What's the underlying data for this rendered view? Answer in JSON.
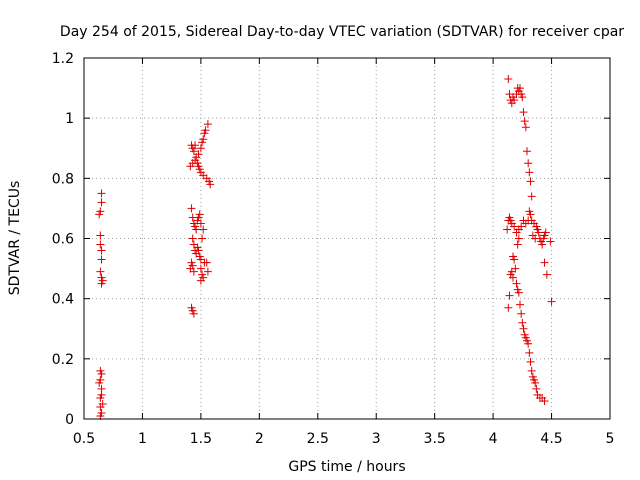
{
  "chart_data": {
    "type": "scatter",
    "title": "Day 254 of 2015, Sidereal Day-to-day VTEC variation (SDTVAR) for receiver cpar",
    "xlabel": "GPS time / hours",
    "ylabel": "SDTVAR / TECUs",
    "xlim": [
      0.5,
      5
    ],
    "ylim": [
      0,
      1.2
    ],
    "xticks": [
      "0.5",
      "1",
      "1.5",
      "2",
      "2.5",
      "3",
      "3.5",
      "4",
      "4.5",
      "5"
    ],
    "yticks": [
      "0",
      "0.2",
      "0.4",
      "0.6",
      "0.8",
      "1",
      "1.2"
    ],
    "grid": true,
    "marker": "+",
    "color": "#e00000",
    "points": [
      [
        0.63,
        0.68
      ],
      [
        0.64,
        0.69
      ],
      [
        0.65,
        0.75
      ],
      [
        0.65,
        0.72
      ],
      [
        0.64,
        0.61
      ],
      [
        0.64,
        0.58
      ],
      [
        0.65,
        0.56
      ],
      [
        0.65,
        0.53
      ],
      [
        0.64,
        0.49
      ],
      [
        0.65,
        0.47
      ],
      [
        0.66,
        0.46
      ],
      [
        0.65,
        0.45
      ],
      [
        0.64,
        0.16
      ],
      [
        0.65,
        0.15
      ],
      [
        0.64,
        0.13
      ],
      [
        0.63,
        0.12
      ],
      [
        0.65,
        0.1
      ],
      [
        0.65,
        0.08
      ],
      [
        0.64,
        0.07
      ],
      [
        0.66,
        0.05
      ],
      [
        0.64,
        0.04
      ],
      [
        0.65,
        0.02
      ],
      [
        0.64,
        0.01
      ],
      [
        1.42,
        0.91
      ],
      [
        1.43,
        0.9
      ],
      [
        1.44,
        0.89
      ],
      [
        1.45,
        0.91
      ],
      [
        1.46,
        0.87
      ],
      [
        1.45,
        0.86
      ],
      [
        1.47,
        0.85
      ],
      [
        1.48,
        0.84
      ],
      [
        1.49,
        0.83
      ],
      [
        1.48,
        0.88
      ],
      [
        1.5,
        0.9
      ],
      [
        1.51,
        0.92
      ],
      [
        1.52,
        0.93
      ],
      [
        1.53,
        0.95
      ],
      [
        1.54,
        0.96
      ],
      [
        1.56,
        0.98
      ],
      [
        1.5,
        0.82
      ],
      [
        1.52,
        0.81
      ],
      [
        1.55,
        0.8
      ],
      [
        1.57,
        0.79
      ],
      [
        1.58,
        0.78
      ],
      [
        1.41,
        0.84
      ],
      [
        1.43,
        0.85
      ],
      [
        1.42,
        0.7
      ],
      [
        1.43,
        0.67
      ],
      [
        1.44,
        0.65
      ],
      [
        1.45,
        0.64
      ],
      [
        1.46,
        0.63
      ],
      [
        1.47,
        0.66
      ],
      [
        1.48,
        0.67
      ],
      [
        1.49,
        0.68
      ],
      [
        1.5,
        0.65
      ],
      [
        1.52,
        0.63
      ],
      [
        1.51,
        0.6
      ],
      [
        1.43,
        0.6
      ],
      [
        1.44,
        0.58
      ],
      [
        1.45,
        0.56
      ],
      [
        1.46,
        0.55
      ],
      [
        1.47,
        0.57
      ],
      [
        1.48,
        0.56
      ],
      [
        1.49,
        0.54
      ],
      [
        1.5,
        0.53
      ],
      [
        1.42,
        0.52
      ],
      [
        1.43,
        0.51
      ],
      [
        1.41,
        0.5
      ],
      [
        1.44,
        0.49
      ],
      [
        1.5,
        0.5
      ],
      [
        1.51,
        0.48
      ],
      [
        1.52,
        0.47
      ],
      [
        1.5,
        0.46
      ],
      [
        1.53,
        0.52
      ],
      [
        1.55,
        0.52
      ],
      [
        1.56,
        0.49
      ],
      [
        1.42,
        0.37
      ],
      [
        1.43,
        0.36
      ],
      [
        1.44,
        0.35
      ],
      [
        4.13,
        1.13
      ],
      [
        4.14,
        1.08
      ],
      [
        4.15,
        1.06
      ],
      [
        4.16,
        1.05
      ],
      [
        4.17,
        1.07
      ],
      [
        4.18,
        1.06
      ],
      [
        4.2,
        1.08
      ],
      [
        4.21,
        1.1
      ],
      [
        4.22,
        1.09
      ],
      [
        4.23,
        1.1
      ],
      [
        4.24,
        1.08
      ],
      [
        4.25,
        1.07
      ],
      [
        4.26,
        1.02
      ],
      [
        4.27,
        0.99
      ],
      [
        4.28,
        0.97
      ],
      [
        4.29,
        0.89
      ],
      [
        4.3,
        0.85
      ],
      [
        4.31,
        0.82
      ],
      [
        4.32,
        0.79
      ],
      [
        4.33,
        0.74
      ],
      [
        4.31,
        0.69
      ],
      [
        4.32,
        0.68
      ],
      [
        4.3,
        0.66
      ],
      [
        4.28,
        0.65
      ],
      [
        4.26,
        0.66
      ],
      [
        4.24,
        0.64
      ],
      [
        4.22,
        0.63
      ],
      [
        4.2,
        0.62
      ],
      [
        4.18,
        0.64
      ],
      [
        4.16,
        0.65
      ],
      [
        4.15,
        0.66
      ],
      [
        4.14,
        0.67
      ],
      [
        4.13,
        0.66
      ],
      [
        4.12,
        0.63
      ],
      [
        4.33,
        0.66
      ],
      [
        4.35,
        0.65
      ],
      [
        4.37,
        0.64
      ],
      [
        4.38,
        0.63
      ],
      [
        4.39,
        0.62
      ],
      [
        4.4,
        0.6
      ],
      [
        4.41,
        0.59
      ],
      [
        4.42,
        0.58
      ],
      [
        4.43,
        0.6
      ],
      [
        4.44,
        0.61
      ],
      [
        4.45,
        0.62
      ],
      [
        4.49,
        0.59
      ],
      [
        4.36,
        0.6
      ],
      [
        4.34,
        0.61
      ],
      [
        4.22,
        0.6
      ],
      [
        4.21,
        0.58
      ],
      [
        4.44,
        0.52
      ],
      [
        4.46,
        0.48
      ],
      [
        4.5,
        0.39
      ],
      [
        4.17,
        0.54
      ],
      [
        4.18,
        0.53
      ],
      [
        4.19,
        0.5
      ],
      [
        4.16,
        0.49
      ],
      [
        4.15,
        0.48
      ],
      [
        4.17,
        0.47
      ],
      [
        4.2,
        0.45
      ],
      [
        4.21,
        0.43
      ],
      [
        4.22,
        0.42
      ],
      [
        4.14,
        0.41
      ],
      [
        4.13,
        0.37
      ],
      [
        4.23,
        0.38
      ],
      [
        4.24,
        0.35
      ],
      [
        4.25,
        0.32
      ],
      [
        4.26,
        0.3
      ],
      [
        4.27,
        0.28
      ],
      [
        4.28,
        0.27
      ],
      [
        4.29,
        0.26
      ],
      [
        4.3,
        0.25
      ],
      [
        4.31,
        0.22
      ],
      [
        4.32,
        0.19
      ],
      [
        4.33,
        0.16
      ],
      [
        4.34,
        0.14
      ],
      [
        4.35,
        0.13
      ],
      [
        4.36,
        0.12
      ],
      [
        4.37,
        0.1
      ],
      [
        4.38,
        0.08
      ],
      [
        4.4,
        0.07
      ],
      [
        4.42,
        0.07
      ],
      [
        4.44,
        0.06
      ]
    ]
  }
}
